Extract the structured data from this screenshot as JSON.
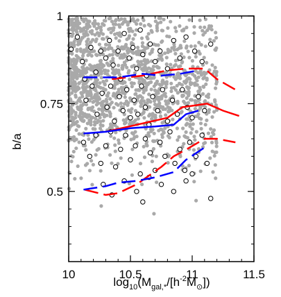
{
  "chart_data": {
    "type": "scatter",
    "xlabel": "log10(Mgal,*/[h-2M⊙])",
    "xlabel_parts": {
      "base": "log",
      "base_sub": "10",
      "open": "(M",
      "m_sub": "gal,*",
      "mid": "/[h",
      "exp": "-2",
      "m2": "M",
      "sun": "⊙",
      "close": "])"
    },
    "ylabel": "b/a",
    "xlim": [
      10.0,
      11.5
    ],
    "ylim": [
      0.3,
      1.0
    ],
    "xticks": [
      10,
      10.5,
      11,
      11.5
    ],
    "xtick_labels": [
      "10",
      "10.5",
      "11",
      "11.5"
    ],
    "yticks": [
      0.5,
      0.75,
      1
    ],
    "ytick_labels": [
      "0.5",
      "0.75",
      "1"
    ],
    "grid": false,
    "colors": {
      "background_points": "#a9a9a9",
      "open_circles": "#000000",
      "red_lines": "#ff0000",
      "blue_lines": "#0000ff"
    },
    "series": [
      {
        "kind": "points",
        "marker": "open-circle",
        "points": [
          [
            10.02,
            0.905
          ],
          [
            10.07,
            0.94
          ],
          [
            10.11,
            0.87
          ],
          [
            10.13,
            0.82
          ],
          [
            10.18,
            0.91
          ],
          [
            10.22,
            0.84
          ],
          [
            10.26,
            0.9
          ],
          [
            10.3,
            0.88
          ],
          [
            10.33,
            0.93
          ],
          [
            10.36,
            0.86
          ],
          [
            10.4,
            0.9
          ],
          [
            10.42,
            0.82
          ],
          [
            10.45,
            0.95
          ],
          [
            10.49,
            0.88
          ],
          [
            10.52,
            0.91
          ],
          [
            10.55,
            0.85
          ],
          [
            10.58,
            0.96
          ],
          [
            10.6,
            0.89
          ],
          [
            10.63,
            0.83
          ],
          [
            10.66,
            0.92
          ],
          [
            10.7,
            0.87
          ],
          [
            10.74,
            0.9
          ],
          [
            10.8,
            0.85
          ],
          [
            10.85,
            0.93
          ],
          [
            10.9,
            0.88
          ],
          [
            10.95,
            0.94
          ],
          [
            11.02,
            0.9
          ],
          [
            11.08,
            0.87
          ],
          [
            11.15,
            0.92
          ],
          [
            10.14,
            0.76
          ],
          [
            10.19,
            0.8
          ],
          [
            10.23,
            0.72
          ],
          [
            10.27,
            0.78
          ],
          [
            10.31,
            0.74
          ],
          [
            10.34,
            0.8
          ],
          [
            10.37,
            0.7
          ],
          [
            10.41,
            0.77
          ],
          [
            10.44,
            0.73
          ],
          [
            10.47,
            0.79
          ],
          [
            10.5,
            0.71
          ],
          [
            10.53,
            0.76
          ],
          [
            10.56,
            0.72
          ],
          [
            10.59,
            0.8
          ],
          [
            10.62,
            0.74
          ],
          [
            10.65,
            0.69
          ],
          [
            10.68,
            0.77
          ],
          [
            10.72,
            0.73
          ],
          [
            10.76,
            0.79
          ],
          [
            10.8,
            0.7
          ],
          [
            10.84,
            0.76
          ],
          [
            10.88,
            0.72
          ],
          [
            10.92,
            0.79
          ],
          [
            10.96,
            0.74
          ],
          [
            11.0,
            0.71
          ],
          [
            11.05,
            0.77
          ],
          [
            11.1,
            0.73
          ],
          [
            10.12,
            0.64
          ],
          [
            10.17,
            0.6
          ],
          [
            10.22,
            0.66
          ],
          [
            10.26,
            0.58
          ],
          [
            10.3,
            0.63
          ],
          [
            10.34,
            0.67
          ],
          [
            10.38,
            0.57
          ],
          [
            10.42,
            0.62
          ],
          [
            10.46,
            0.66
          ],
          [
            10.5,
            0.59
          ],
          [
            10.54,
            0.63
          ],
          [
            10.58,
            0.55
          ],
          [
            10.62,
            0.65
          ],
          [
            10.66,
            0.61
          ],
          [
            10.7,
            0.56
          ],
          [
            10.74,
            0.64
          ],
          [
            10.78,
            0.6
          ],
          [
            10.82,
            0.67
          ],
          [
            10.86,
            0.58
          ],
          [
            10.9,
            0.62
          ],
          [
            10.94,
            0.56
          ],
          [
            10.98,
            0.64
          ],
          [
            11.03,
            0.6
          ],
          [
            11.08,
            0.66
          ],
          [
            11.12,
            0.58
          ],
          [
            10.28,
            0.52
          ],
          [
            10.35,
            0.49
          ],
          [
            10.45,
            0.53
          ],
          [
            10.55,
            0.5
          ],
          [
            10.6,
            0.47
          ],
          [
            10.65,
            0.54
          ],
          [
            10.75,
            0.52
          ],
          [
            10.85,
            0.5
          ],
          [
            10.95,
            0.53
          ],
          [
            11.0,
            0.55
          ],
          [
            11.15,
            0.48
          ]
        ]
      },
      {
        "kind": "line",
        "color": "red",
        "dash": "long",
        "points": [
          [
            10.35,
            0.82
          ],
          [
            10.6,
            0.83
          ],
          [
            10.8,
            0.845
          ],
          [
            10.95,
            0.85
          ],
          [
            11.1,
            0.85
          ],
          [
            11.2,
            0.82
          ],
          [
            11.35,
            0.79
          ]
        ]
      },
      {
        "kind": "line",
        "color": "red",
        "dash": "solid",
        "points": [
          [
            10.3,
            0.67
          ],
          [
            10.55,
            0.69
          ],
          [
            10.8,
            0.71
          ],
          [
            10.92,
            0.74
          ],
          [
            11.12,
            0.75
          ],
          [
            11.25,
            0.73
          ],
          [
            11.38,
            0.715
          ]
        ]
      },
      {
        "kind": "line",
        "color": "red",
        "dash": "long",
        "points": [
          [
            10.13,
            0.505
          ],
          [
            10.3,
            0.49
          ],
          [
            10.4,
            0.495
          ],
          [
            10.55,
            0.52
          ],
          [
            10.75,
            0.57
          ],
          [
            10.85,
            0.6
          ],
          [
            10.98,
            0.625
          ],
          [
            11.1,
            0.65
          ],
          [
            11.2,
            0.65
          ],
          [
            11.35,
            0.64
          ]
        ]
      },
      {
        "kind": "line",
        "color": "blue",
        "dash": "long",
        "points": [
          [
            10.12,
            0.825
          ],
          [
            10.25,
            0.825
          ],
          [
            10.4,
            0.825
          ],
          [
            10.6,
            0.835
          ],
          [
            10.75,
            0.83
          ],
          [
            10.9,
            0.835
          ],
          [
            11.05,
            0.845
          ]
        ]
      },
      {
        "kind": "line",
        "color": "blue",
        "dash": "solid",
        "points": [
          [
            10.12,
            0.665
          ],
          [
            10.3,
            0.67
          ],
          [
            10.5,
            0.68
          ],
          [
            10.7,
            0.685
          ],
          [
            10.85,
            0.69
          ],
          [
            10.95,
            0.72
          ],
          [
            11.05,
            0.73
          ]
        ]
      },
      {
        "kind": "line",
        "color": "blue",
        "dash": "long",
        "points": [
          [
            10.12,
            0.505
          ],
          [
            10.3,
            0.515
          ],
          [
            10.4,
            0.525
          ],
          [
            10.55,
            0.53
          ],
          [
            10.7,
            0.54
          ],
          [
            10.85,
            0.555
          ],
          [
            10.95,
            0.59
          ],
          [
            11.1,
            0.625
          ]
        ]
      }
    ]
  }
}
